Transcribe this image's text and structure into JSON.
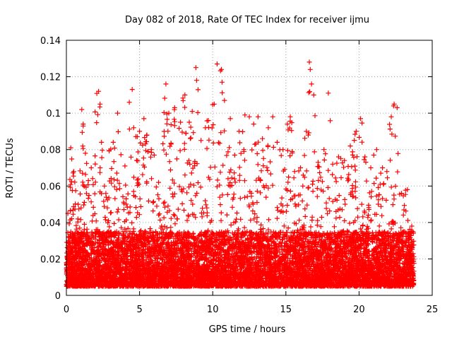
{
  "chart_data": {
    "type": "scatter",
    "title": "Day 082 of 2018, Rate Of TEC Index for receiver ijmu",
    "xlabel": "GPS time / hours",
    "ylabel": "ROTI / TECUs",
    "xlim": [
      0,
      25
    ],
    "ylim": [
      0,
      0.14
    ],
    "x_ticks": [
      0,
      5,
      10,
      15,
      20,
      25
    ],
    "x_tick_labels": [
      "0",
      "5",
      "10",
      "15",
      "20",
      "25"
    ],
    "y_ticks": [
      0,
      0.02,
      0.04,
      0.06,
      0.08,
      0.1,
      0.12,
      0.14
    ],
    "y_tick_labels": [
      "0",
      "0.02",
      "0.04",
      "0.06",
      "0.08",
      "0.1",
      "0.12",
      "0.14"
    ],
    "grid": true,
    "marker": "+",
    "marker_color": "#ff0000",
    "data_coverage_hours": [
      0.0,
      23.75
    ],
    "series": [
      {
        "name": "ROTI",
        "base_band": [
          0.005,
          0.035
        ],
        "peaks": [
          {
            "x": 0.1,
            "y": 0.045
          },
          {
            "x": 0.3,
            "y": 0.081
          },
          {
            "x": 0.5,
            "y": 0.068
          },
          {
            "x": 0.8,
            "y": 0.05
          },
          {
            "x": 1.05,
            "y": 0.102
          },
          {
            "x": 1.15,
            "y": 0.094
          },
          {
            "x": 1.3,
            "y": 0.078
          },
          {
            "x": 1.5,
            "y": 0.063
          },
          {
            "x": 1.7,
            "y": 0.07
          },
          {
            "x": 2.2,
            "y": 0.112
          },
          {
            "x": 2.3,
            "y": 0.105
          },
          {
            "x": 2.4,
            "y": 0.084
          },
          {
            "x": 2.6,
            "y": 0.06
          },
          {
            "x": 3.2,
            "y": 0.084
          },
          {
            "x": 3.5,
            "y": 0.1
          },
          {
            "x": 4.0,
            "y": 0.071
          },
          {
            "x": 4.3,
            "y": 0.106
          },
          {
            "x": 4.5,
            "y": 0.113
          },
          {
            "x": 4.6,
            "y": 0.092
          },
          {
            "x": 5.0,
            "y": 0.09
          },
          {
            "x": 5.3,
            "y": 0.097
          },
          {
            "x": 5.5,
            "y": 0.088
          },
          {
            "x": 5.8,
            "y": 0.08
          },
          {
            "x": 6.0,
            "y": 0.077
          },
          {
            "x": 6.3,
            "y": 0.062
          },
          {
            "x": 6.8,
            "y": 0.116
          },
          {
            "x": 7.0,
            "y": 0.1
          },
          {
            "x": 7.4,
            "y": 0.103
          },
          {
            "x": 7.8,
            "y": 0.095
          },
          {
            "x": 8.1,
            "y": 0.11
          },
          {
            "x": 8.4,
            "y": 0.095
          },
          {
            "x": 8.6,
            "y": 0.101
          },
          {
            "x": 8.85,
            "y": 0.125
          },
          {
            "x": 8.9,
            "y": 0.118
          },
          {
            "x": 9.2,
            "y": 0.085
          },
          {
            "x": 9.5,
            "y": 0.092
          },
          {
            "x": 9.7,
            "y": 0.096
          },
          {
            "x": 10.1,
            "y": 0.105
          },
          {
            "x": 10.3,
            "y": 0.127
          },
          {
            "x": 10.6,
            "y": 0.124
          },
          {
            "x": 10.8,
            "y": 0.107
          },
          {
            "x": 11.2,
            "y": 0.097
          },
          {
            "x": 11.5,
            "y": 0.077
          },
          {
            "x": 11.8,
            "y": 0.09
          },
          {
            "x": 12.2,
            "y": 0.099
          },
          {
            "x": 12.5,
            "y": 0.098
          },
          {
            "x": 12.8,
            "y": 0.094
          },
          {
            "x": 13.1,
            "y": 0.098
          },
          {
            "x": 13.4,
            "y": 0.086
          },
          {
            "x": 13.8,
            "y": 0.092
          },
          {
            "x": 14.1,
            "y": 0.098
          },
          {
            "x": 14.4,
            "y": 0.084
          },
          {
            "x": 14.8,
            "y": 0.08
          },
          {
            "x": 15.1,
            "y": 0.094
          },
          {
            "x": 15.3,
            "y": 0.098
          },
          {
            "x": 15.6,
            "y": 0.068
          },
          {
            "x": 16.0,
            "y": 0.07
          },
          {
            "x": 16.4,
            "y": 0.09
          },
          {
            "x": 16.6,
            "y": 0.128
          },
          {
            "x": 16.75,
            "y": 0.116
          },
          {
            "x": 16.9,
            "y": 0.11
          },
          {
            "x": 17.2,
            "y": 0.073
          },
          {
            "x": 17.6,
            "y": 0.08
          },
          {
            "x": 17.9,
            "y": 0.111
          },
          {
            "x": 18.2,
            "y": 0.072
          },
          {
            "x": 18.6,
            "y": 0.076
          },
          {
            "x": 19.0,
            "y": 0.074
          },
          {
            "x": 19.4,
            "y": 0.082
          },
          {
            "x": 19.8,
            "y": 0.09
          },
          {
            "x": 20.1,
            "y": 0.097
          },
          {
            "x": 20.4,
            "y": 0.076
          },
          {
            "x": 20.8,
            "y": 0.07
          },
          {
            "x": 21.2,
            "y": 0.08
          },
          {
            "x": 21.6,
            "y": 0.07
          },
          {
            "x": 21.9,
            "y": 0.068
          },
          {
            "x": 22.2,
            "y": 0.098
          },
          {
            "x": 22.4,
            "y": 0.105
          },
          {
            "x": 22.6,
            "y": 0.103
          },
          {
            "x": 22.9,
            "y": 0.056
          },
          {
            "x": 23.3,
            "y": 0.058
          },
          {
            "x": 23.6,
            "y": 0.038
          }
        ]
      }
    ]
  }
}
